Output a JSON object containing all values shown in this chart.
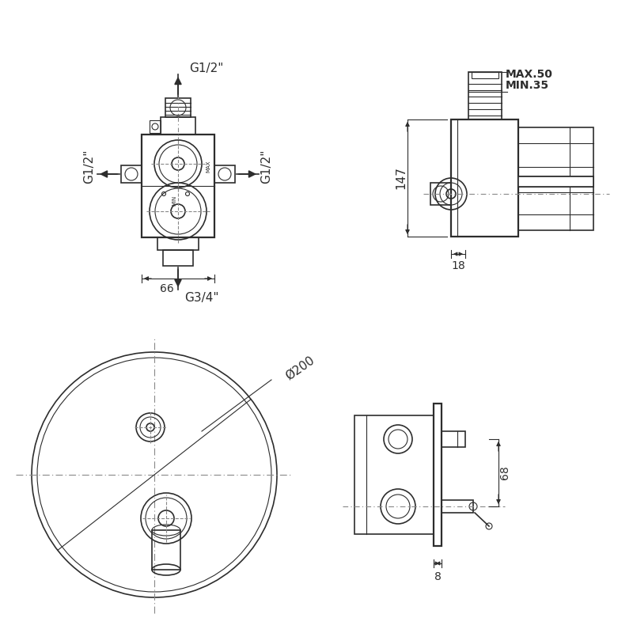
{
  "bg_color": "#ffffff",
  "line_color": "#2d2d2d",
  "gray": "#888888",
  "annotations": {
    "g12_top": "G1/2\"",
    "g12_left": "G1/2\"",
    "g12_right": "G1/2\"",
    "g34_bottom": "G3/4\"",
    "dim_66": "66",
    "dim_147": "147",
    "dim_18": "18",
    "dim_max50": "MAX.50",
    "dim_min35": "MIN.35",
    "dim_200": "Ø200",
    "dim_68": "68",
    "dim_8": "8",
    "max_label": "MAX",
    "min_label": "MIN"
  }
}
